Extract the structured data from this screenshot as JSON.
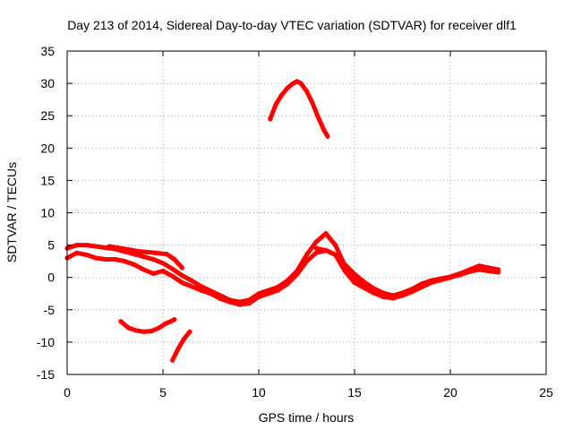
{
  "chart_data": {
    "type": "scatter",
    "title": "Day 213 of 2014, Sidereal Day-to-day VTEC variation (SDTVAR) for receiver dlf1",
    "xlabel": "GPS time / hours",
    "ylabel": "SDTVAR / TECUs",
    "xlim": [
      0,
      25
    ],
    "ylim": [
      -15,
      35
    ],
    "xticks": [
      0,
      5,
      10,
      15,
      20,
      25
    ],
    "yticks": [
      -15,
      -10,
      -5,
      0,
      5,
      10,
      15,
      20,
      25,
      30,
      35
    ],
    "grid": true,
    "color": "#ff0000",
    "series": [
      {
        "name": "band-a",
        "x": [
          0.0,
          0.5,
          1.0,
          1.5,
          2.0,
          2.5,
          3.0,
          3.5,
          4.0,
          4.5,
          5.0,
          5.5,
          6.0,
          6.5,
          7.0,
          7.5,
          8.0,
          8.5,
          9.0,
          9.5,
          10.0,
          10.5,
          11.0,
          11.5,
          12.0,
          12.5,
          13.0,
          13.5,
          14.0,
          14.5,
          15.0,
          15.5,
          16.0,
          16.5,
          17.0,
          17.5,
          18.0,
          18.5,
          19.0,
          19.5,
          20.0,
          20.5,
          21.0,
          21.5,
          22.0,
          22.5
        ],
        "y": [
          4.5,
          5.0,
          5.0,
          4.8,
          4.6,
          4.4,
          4.0,
          3.6,
          3.2,
          2.8,
          2.2,
          1.3,
          0.3,
          -0.5,
          -1.4,
          -2.1,
          -2.8,
          -3.5,
          -3.8,
          -3.5,
          -2.5,
          -2.0,
          -1.5,
          -0.5,
          1.0,
          3.5,
          5.5,
          6.8,
          5.0,
          1.8,
          0.0,
          -1.0,
          -2.0,
          -2.6,
          -2.8,
          -2.4,
          -1.8,
          -1.0,
          -0.5,
          -0.2,
          0.1,
          0.6,
          1.2,
          1.8,
          1.5,
          1.2
        ]
      },
      {
        "name": "band-b",
        "x": [
          0.0,
          0.5,
          1.0,
          1.5,
          2.0,
          2.5,
          3.0,
          3.5,
          4.0,
          4.5,
          5.0,
          5.5,
          6.0,
          6.5,
          7.0,
          7.5,
          8.0,
          8.5,
          9.0,
          9.5,
          10.0,
          10.5,
          11.0,
          11.5,
          12.0,
          12.5,
          13.0,
          13.5,
          14.0,
          14.5,
          15.0,
          15.5,
          16.0,
          16.5,
          17.0,
          17.5,
          18.0,
          18.5,
          19.0,
          19.5,
          20.0,
          20.5,
          21.0,
          21.5,
          22.0,
          22.5
        ],
        "y": [
          3.0,
          3.8,
          3.5,
          3.0,
          2.8,
          2.8,
          2.5,
          2.0,
          1.2,
          0.6,
          1.0,
          0.2,
          -0.8,
          -1.4,
          -2.0,
          -2.5,
          -3.3,
          -3.8,
          -4.2,
          -4.0,
          -3.0,
          -2.5,
          -2.0,
          -1.0,
          0.5,
          2.5,
          3.8,
          4.2,
          3.5,
          1.0,
          -0.8,
          -1.6,
          -2.4,
          -3.0,
          -3.2,
          -2.8,
          -2.2,
          -1.5,
          -0.8,
          -0.4,
          0.0,
          0.4,
          0.9,
          1.2,
          1.0,
          0.8
        ]
      },
      {
        "name": "band-c",
        "x": [
          2.2,
          3.0,
          3.8,
          4.6,
          5.2,
          5.6,
          6.0
        ],
        "y": [
          4.8,
          4.4,
          4.0,
          3.8,
          3.6,
          2.8,
          1.5
        ]
      },
      {
        "name": "peak-arc",
        "x": [
          10.6,
          10.9,
          11.2,
          11.5,
          11.8,
          12.0,
          12.2,
          12.5,
          12.8,
          13.1,
          13.4,
          13.6
        ],
        "y": [
          24.5,
          26.8,
          28.2,
          29.3,
          30.0,
          30.3,
          30.0,
          28.8,
          27.0,
          24.8,
          22.8,
          21.8
        ]
      },
      {
        "name": "segment-low",
        "x": [
          2.8,
          3.2,
          3.6,
          4.0,
          4.4,
          4.8,
          5.1,
          5.4,
          5.6
        ],
        "y": [
          -6.8,
          -7.8,
          -8.2,
          -8.4,
          -8.3,
          -7.8,
          -7.2,
          -6.8,
          -6.5
        ]
      },
      {
        "name": "segment-steep",
        "x": [
          5.5,
          5.8,
          6.1,
          6.4
        ],
        "y": [
          -12.8,
          -11.0,
          -9.5,
          -8.4
        ]
      },
      {
        "name": "band-d",
        "x": [
          13.0,
          13.5,
          14.0,
          14.5,
          15.0,
          15.5,
          16.0,
          16.5,
          17.0
        ],
        "y": [
          4.5,
          4.2,
          3.5,
          2.0,
          0.5,
          -0.7,
          -1.7,
          -2.4,
          -2.8
        ]
      }
    ]
  }
}
